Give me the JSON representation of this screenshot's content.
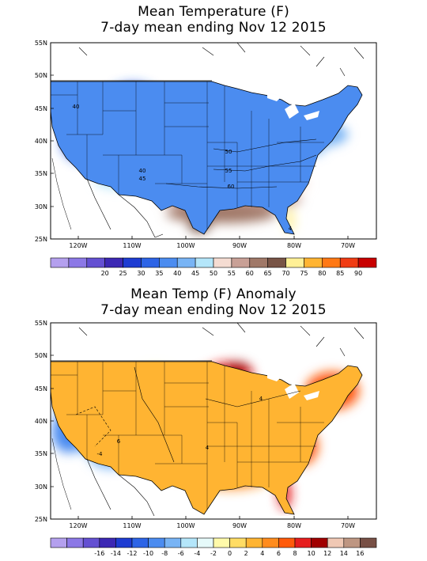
{
  "maps": [
    {
      "title_line1": "Mean Temperature (F)",
      "title_line2": "7-day mean ending Nov 12 2015",
      "lat_labels": [
        "55N",
        "50N",
        "45N",
        "40N",
        "35N",
        "30N",
        "25N"
      ],
      "lon_labels": [
        "120W",
        "110W",
        "100W",
        "90W",
        "80W",
        "70W"
      ],
      "contour_labels": [
        "40",
        "50",
        "55",
        "40",
        "45",
        "60",
        "4"
      ],
      "colorbar": {
        "colors": [
          "#b4a0ee",
          "#8c78e6",
          "#6450d2",
          "#3c28b4",
          "#1e3cd2",
          "#2d64e6",
          "#4b8cf0",
          "#78b4f5",
          "#b4e6fa",
          "#f5dcd2",
          "#c8a096",
          "#a07868",
          "#785446",
          "#fff096",
          "#ffb432",
          "#ff7814",
          "#f03c14",
          "#c80000"
        ],
        "labels": [
          "20",
          "25",
          "30",
          "35",
          "40",
          "45",
          "50",
          "55",
          "60",
          "65",
          "70",
          "75",
          "80",
          "85",
          "90"
        ]
      }
    },
    {
      "title_line1": "Mean Temp (F) Anomaly",
      "title_line2": "7-day mean ending Nov 12 2015",
      "lat_labels": [
        "55N",
        "50N",
        "45N",
        "40N",
        "35N",
        "30N",
        "25N"
      ],
      "lon_labels": [
        "120W",
        "110W",
        "100W",
        "90W",
        "80W",
        "70W"
      ],
      "contour_labels": [
        "4",
        "4",
        "6",
        "-4"
      ],
      "colorbar": {
        "colors": [
          "#b4a0ee",
          "#8c78e6",
          "#6450d2",
          "#3c28b4",
          "#1e3cd2",
          "#2d64e6",
          "#4b8cf0",
          "#78b4f5",
          "#b4e6fa",
          "#e6fafa",
          "#fffaaa",
          "#ffdc64",
          "#ffb432",
          "#ff8c1e",
          "#ff5a0a",
          "#e61e1e",
          "#a00000",
          "#f0c8b4",
          "#be9682",
          "#785046"
        ],
        "labels": [
          "-16",
          "-14",
          "-12",
          "-10",
          "-8",
          "-6",
          "-4",
          "-2",
          "0",
          "2",
          "4",
          "6",
          "8",
          "10",
          "12",
          "14",
          "16"
        ]
      }
    }
  ]
}
